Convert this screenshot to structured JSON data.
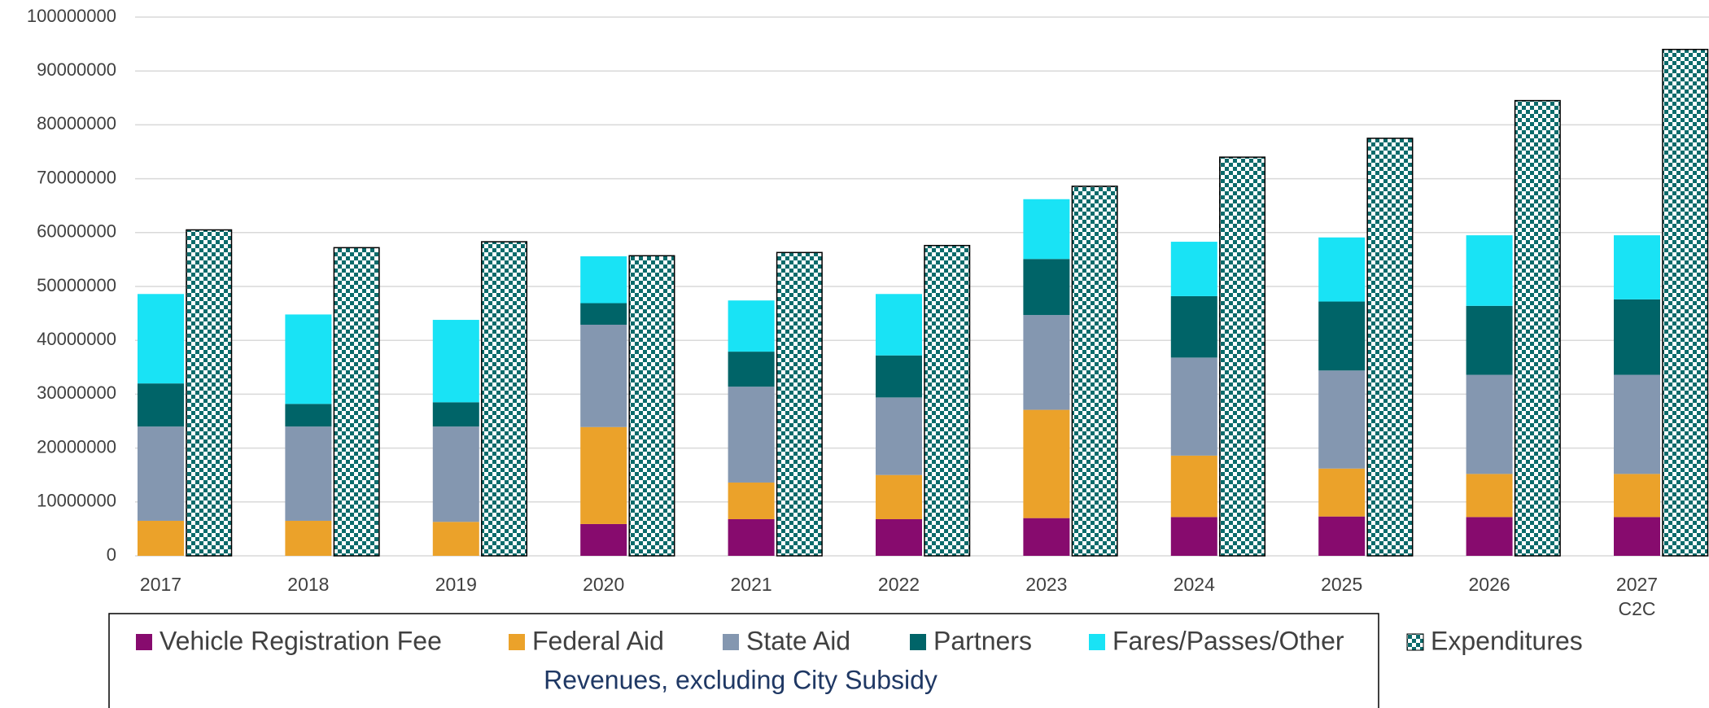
{
  "chart_data": {
    "type": "stacked_bar",
    "categories": [
      "2017",
      "2018",
      "2019",
      "2020",
      "2021",
      "2022",
      "2023",
      "2024",
      "2025",
      "2026",
      "2027\nC2C"
    ],
    "ylim": [
      0,
      100000000
    ],
    "yticks": [
      0,
      10000000,
      20000000,
      30000000,
      40000000,
      50000000,
      60000000,
      70000000,
      80000000,
      90000000,
      100000000
    ],
    "grid": true,
    "series": [
      {
        "name": "Vehicle Registration Fee",
        "color": "#870b6e",
        "values": [
          0,
          0,
          0,
          5900000,
          6800000,
          6800000,
          7000000,
          7200000,
          7300000,
          7200000,
          7200000
        ]
      },
      {
        "name": "Federal Aid",
        "color": "#eba22a",
        "values": [
          6500000,
          6500000,
          6300000,
          18000000,
          6800000,
          8200000,
          20100000,
          11400000,
          8900000,
          8000000,
          8000000
        ]
      },
      {
        "name": "State Aid",
        "color": "#8497b0",
        "values": [
          17500000,
          17500000,
          17700000,
          19000000,
          17800000,
          14400000,
          17600000,
          18200000,
          18200000,
          18400000,
          18400000
        ]
      },
      {
        "name": "Partners",
        "color": "#006468",
        "values": [
          8000000,
          4200000,
          4500000,
          4000000,
          6500000,
          7800000,
          10400000,
          11400000,
          12800000,
          12800000,
          14000000
        ]
      },
      {
        "name": "Fares/Passes/Other",
        "color": "#19e3f5",
        "values": [
          16600000,
          16600000,
          15300000,
          8700000,
          9500000,
          11400000,
          11100000,
          10100000,
          11900000,
          13100000,
          11900000
        ]
      }
    ],
    "expenditures": {
      "name": "Expenditures",
      "color": "#0b6b6b",
      "values": [
        60500000,
        57200000,
        58300000,
        55700000,
        56300000,
        57600000,
        68600000,
        74000000,
        77500000,
        84500000,
        94000000
      ]
    },
    "legend_group_label": "Revenues, excluding City Subsidy"
  }
}
